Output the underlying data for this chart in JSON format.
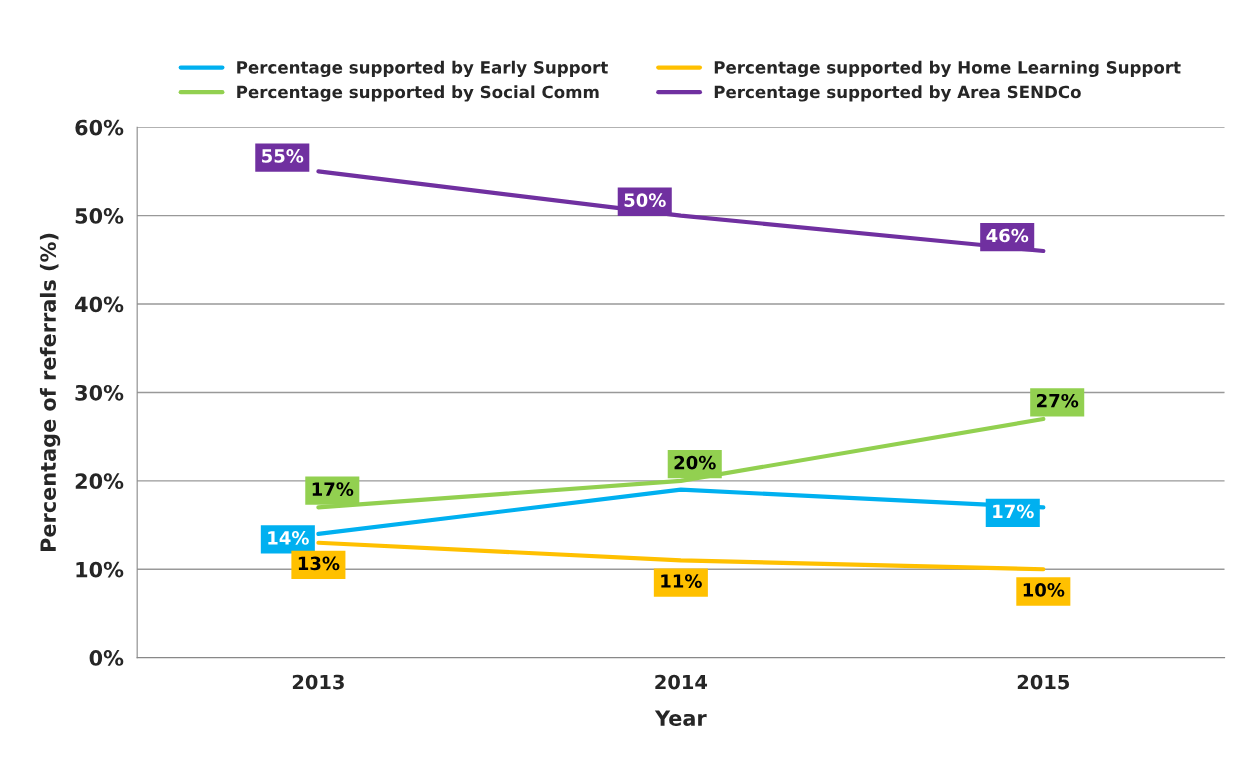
{
  "chart_data": {
    "type": "line",
    "xlabel": "Year",
    "ylabel": "Percentage of referrals (%)",
    "categories": [
      "2013",
      "2014",
      "2015"
    ],
    "series": [
      {
        "name": "Percentage supported by Early Support",
        "color": "#00b0f0",
        "values": [
          14,
          19,
          17
        ],
        "value_labels": [
          "14%",
          null,
          "17%"
        ]
      },
      {
        "name": "Percentage supported by Home Learning Support",
        "color": "#ffc000",
        "values": [
          13,
          11,
          10
        ],
        "value_labels": [
          "13%",
          "11%",
          "10%"
        ]
      },
      {
        "name": "Percentage supported by Social Comm",
        "color": "#92d050",
        "values": [
          17,
          20,
          27
        ],
        "value_labels": [
          "17%",
          "20%",
          "27%"
        ]
      },
      {
        "name": "Percentage supported by Area SENDCo",
        "color": "#7030a0",
        "values": [
          55,
          50,
          46
        ],
        "value_labels": [
          "55%",
          "50%",
          "46%"
        ]
      }
    ],
    "ylim": [
      0,
      60
    ],
    "yticks": [
      {
        "value": 0,
        "label": "0%"
      },
      {
        "value": 10,
        "label": "10%"
      },
      {
        "value": 20,
        "label": "20%"
      },
      {
        "value": 30,
        "label": "30%"
      },
      {
        "value": 40,
        "label": "40%"
      },
      {
        "value": 50,
        "label": "50%"
      },
      {
        "value": 60,
        "label": "60%"
      }
    ],
    "grid": "y",
    "legend": "top",
    "line_style": "solid"
  }
}
